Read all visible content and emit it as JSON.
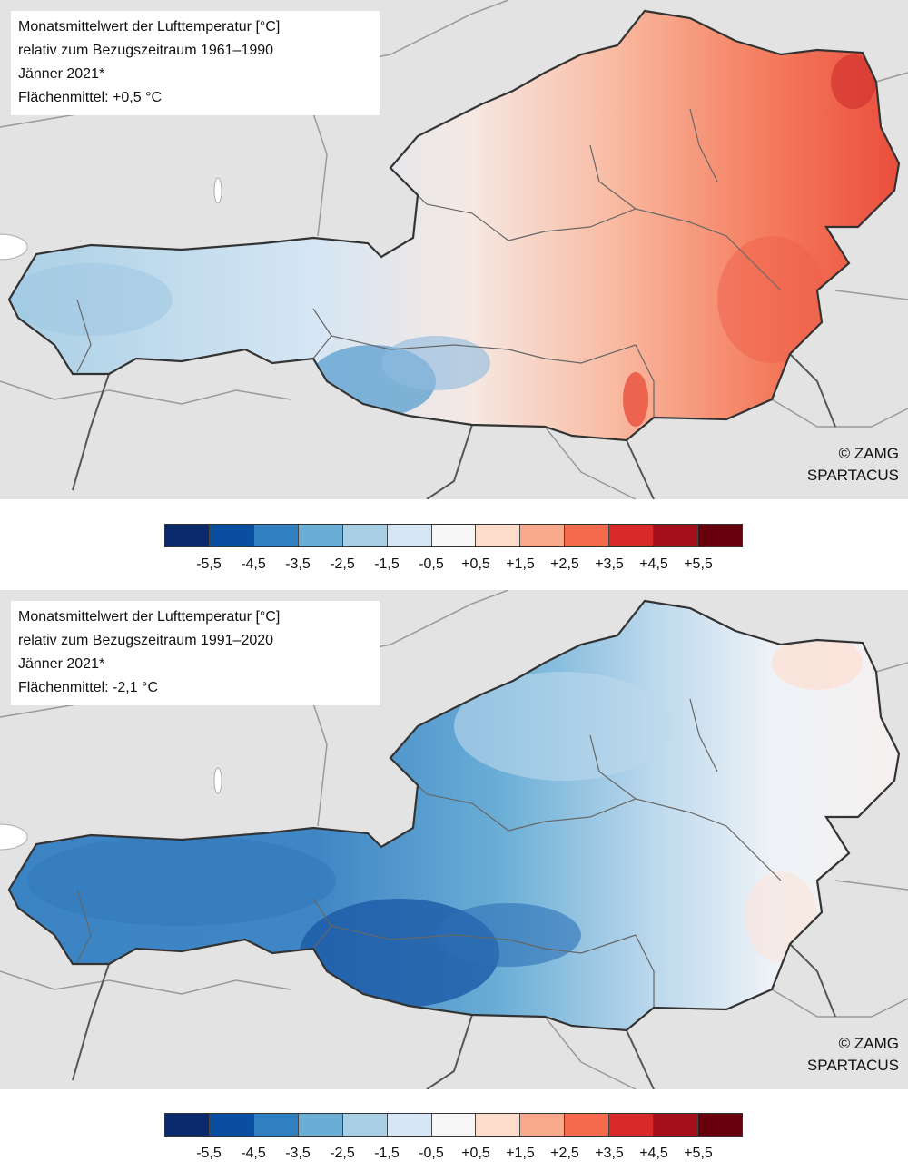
{
  "maps": [
    {
      "title_lines": [
        "Monatsmittelwert der Lufttemperatur [°C]",
        "relativ zum Bezugszeitraum 1961–1990",
        "Jänner 2021*",
        "Flächenmittel: +0,5 °C"
      ],
      "credit": [
        "© ZAMG",
        "SPARTACUS"
      ],
      "anomaly_pattern": "west-cool-east-warm"
    },
    {
      "title_lines": [
        "Monatsmittelwert der Lufttemperatur [°C]",
        "relativ zum Bezugszeitraum 1991–2020",
        "Jänner 2021*",
        "Flächenmittel: -2,1 °C"
      ],
      "credit": [
        "© ZAMG",
        "SPARTACUS"
      ],
      "anomaly_pattern": "mostly-cool"
    }
  ],
  "legend": {
    "colors": [
      "#0b2a6b",
      "#0a4ea0",
      "#2f7fc1",
      "#6aaed6",
      "#a9cfe5",
      "#d6e6f4",
      "#f6f6f6",
      "#fddccc",
      "#f9a98c",
      "#f46a4d",
      "#d92a2a",
      "#a50f1b",
      "#67000d"
    ],
    "labels": [
      "-5,5",
      "-4,5",
      "-3,5",
      "-2,5",
      "-1,5",
      "-0,5",
      "+0,5",
      "+1,5",
      "+2,5",
      "+3,5",
      "+4,5",
      "+5,5"
    ]
  },
  "colors": {
    "background_map": "#e3e3e3",
    "austria_outline": "#333333"
  }
}
